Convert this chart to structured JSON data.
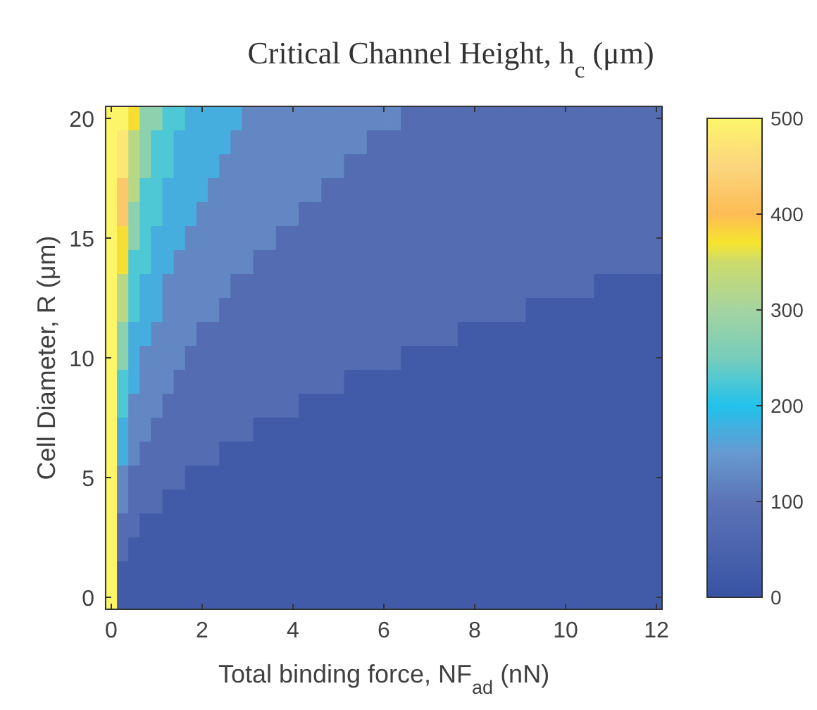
{
  "chart_data": {
    "type": "heatmap",
    "title": "Critical Channel Height, h$_{c}$ (μm)",
    "xlabel": "Total binding force, NF$_{ad}$ (nN)",
    "ylabel": "Cell Diameter, R (μm)",
    "categories": [
      "0",
      null,
      null,
      null,
      null,
      null,
      null,
      null,
      "2",
      null,
      null,
      null,
      null,
      null,
      null,
      null,
      "4",
      null,
      null,
      null,
      null,
      null,
      null,
      null,
      "6",
      null,
      null,
      null,
      null,
      null,
      null,
      null,
      "8",
      null,
      null,
      null,
      null,
      null,
      null,
      null,
      "10",
      null,
      null,
      null,
      null,
      null,
      null,
      null,
      "12"
    ],
    "y_categories": [
      "20",
      null,
      null,
      null,
      null,
      "15",
      null,
      null,
      null,
      null,
      "10",
      null,
      null,
      null,
      null,
      "5",
      null,
      null,
      null,
      null,
      "0"
    ],
    "cells": [
      [
        500,
        500,
        375,
        275,
        275,
        225,
        225,
        175,
        175,
        175,
        175,
        175,
        125,
        125,
        125,
        125,
        125,
        125,
        125,
        125,
        125,
        125,
        125,
        125,
        125,
        125,
        75,
        75,
        75,
        75,
        75,
        75,
        75,
        75,
        75,
        75,
        75,
        75,
        75,
        75,
        75,
        75,
        75,
        75,
        75,
        75,
        75,
        75,
        75
      ],
      [
        500,
        475,
        325,
        275,
        225,
        225,
        175,
        175,
        175,
        175,
        175,
        125,
        125,
        125,
        125,
        125,
        125,
        125,
        125,
        125,
        125,
        125,
        125,
        75,
        75,
        75,
        75,
        75,
        75,
        75,
        75,
        75,
        75,
        75,
        75,
        75,
        75,
        75,
        75,
        75,
        75,
        75,
        75,
        75,
        75,
        75,
        75,
        75,
        75
      ],
      [
        500,
        475,
        325,
        275,
        225,
        225,
        175,
        175,
        175,
        175,
        125,
        125,
        125,
        125,
        125,
        125,
        125,
        125,
        125,
        125,
        125,
        75,
        75,
        75,
        75,
        75,
        75,
        75,
        75,
        75,
        75,
        75,
        75,
        75,
        75,
        75,
        75,
        75,
        75,
        75,
        75,
        75,
        75,
        75,
        75,
        75,
        75,
        75,
        75
      ],
      [
        500,
        425,
        325,
        225,
        225,
        175,
        175,
        175,
        175,
        125,
        125,
        125,
        125,
        125,
        125,
        125,
        125,
        125,
        125,
        75,
        75,
        75,
        75,
        75,
        75,
        75,
        75,
        75,
        75,
        75,
        75,
        75,
        75,
        75,
        75,
        75,
        75,
        75,
        75,
        75,
        75,
        75,
        75,
        75,
        75,
        75,
        75,
        75,
        75
      ],
      [
        500,
        425,
        275,
        225,
        225,
        175,
        175,
        175,
        125,
        125,
        125,
        125,
        125,
        125,
        125,
        125,
        125,
        75,
        75,
        75,
        75,
        75,
        75,
        75,
        75,
        75,
        75,
        75,
        75,
        75,
        75,
        75,
        75,
        75,
        75,
        75,
        75,
        75,
        75,
        75,
        75,
        75,
        75,
        75,
        75,
        75,
        75,
        75,
        75
      ],
      [
        500,
        375,
        275,
        225,
        175,
        175,
        175,
        125,
        125,
        125,
        125,
        125,
        125,
        125,
        125,
        75,
        75,
        75,
        75,
        75,
        75,
        75,
        75,
        75,
        75,
        75,
        75,
        75,
        75,
        75,
        75,
        75,
        75,
        75,
        75,
        75,
        75,
        75,
        75,
        75,
        75,
        75,
        75,
        75,
        75,
        75,
        75,
        75,
        75
      ],
      [
        500,
        375,
        225,
        225,
        175,
        175,
        125,
        125,
        125,
        125,
        125,
        125,
        125,
        75,
        75,
        75,
        75,
        75,
        75,
        75,
        75,
        75,
        75,
        75,
        75,
        75,
        75,
        75,
        75,
        75,
        75,
        75,
        75,
        75,
        75,
        75,
        75,
        75,
        75,
        75,
        75,
        75,
        75,
        75,
        75,
        75,
        75,
        75,
        75
      ],
      [
        500,
        325,
        225,
        175,
        175,
        125,
        125,
        125,
        125,
        125,
        125,
        75,
        75,
        75,
        75,
        75,
        75,
        75,
        75,
        75,
        75,
        75,
        75,
        75,
        75,
        75,
        75,
        75,
        75,
        75,
        75,
        75,
        75,
        75,
        75,
        75,
        75,
        75,
        75,
        75,
        75,
        75,
        75,
        25,
        25,
        25,
        25,
        25,
        25
      ],
      [
        500,
        325,
        225,
        175,
        175,
        125,
        125,
        125,
        125,
        125,
        75,
        75,
        75,
        75,
        75,
        75,
        75,
        75,
        75,
        75,
        75,
        75,
        75,
        75,
        75,
        75,
        75,
        75,
        75,
        75,
        75,
        75,
        75,
        75,
        75,
        75,
        75,
        25,
        25,
        25,
        25,
        25,
        25,
        25,
        25,
        25,
        25,
        25,
        25
      ],
      [
        500,
        275,
        175,
        175,
        125,
        125,
        125,
        125,
        75,
        75,
        75,
        75,
        75,
        75,
        75,
        75,
        75,
        75,
        75,
        75,
        75,
        75,
        75,
        75,
        75,
        75,
        75,
        75,
        75,
        75,
        75,
        25,
        25,
        25,
        25,
        25,
        25,
        25,
        25,
        25,
        25,
        25,
        25,
        25,
        25,
        25,
        25,
        25,
        25
      ],
      [
        500,
        275,
        175,
        125,
        125,
        125,
        125,
        75,
        75,
        75,
        75,
        75,
        75,
        75,
        75,
        75,
        75,
        75,
        75,
        75,
        75,
        75,
        75,
        75,
        75,
        75,
        25,
        25,
        25,
        25,
        25,
        25,
        25,
        25,
        25,
        25,
        25,
        25,
        25,
        25,
        25,
        25,
        25,
        25,
        25,
        25,
        25,
        25,
        25
      ],
      [
        500,
        225,
        175,
        125,
        125,
        125,
        75,
        75,
        75,
        75,
        75,
        75,
        75,
        75,
        75,
        75,
        75,
        75,
        75,
        75,
        75,
        25,
        25,
        25,
        25,
        25,
        25,
        25,
        25,
        25,
        25,
        25,
        25,
        25,
        25,
        25,
        25,
        25,
        25,
        25,
        25,
        25,
        25,
        25,
        25,
        25,
        25,
        25,
        25
      ],
      [
        500,
        225,
        125,
        125,
        125,
        75,
        75,
        75,
        75,
        75,
        75,
        75,
        75,
        75,
        75,
        75,
        75,
        25,
        25,
        25,
        25,
        25,
        25,
        25,
        25,
        25,
        25,
        25,
        25,
        25,
        25,
        25,
        25,
        25,
        25,
        25,
        25,
        25,
        25,
        25,
        25,
        25,
        25,
        25,
        25,
        25,
        25,
        25,
        25
      ],
      [
        500,
        175,
        125,
        125,
        75,
        75,
        75,
        75,
        75,
        75,
        75,
        75,
        75,
        25,
        25,
        25,
        25,
        25,
        25,
        25,
        25,
        25,
        25,
        25,
        25,
        25,
        25,
        25,
        25,
        25,
        25,
        25,
        25,
        25,
        25,
        25,
        25,
        25,
        25,
        25,
        25,
        25,
        25,
        25,
        25,
        25,
        25,
        25,
        25
      ],
      [
        500,
        175,
        125,
        75,
        75,
        75,
        75,
        75,
        75,
        75,
        25,
        25,
        25,
        25,
        25,
        25,
        25,
        25,
        25,
        25,
        25,
        25,
        25,
        25,
        25,
        25,
        25,
        25,
        25,
        25,
        25,
        25,
        25,
        25,
        25,
        25,
        25,
        25,
        25,
        25,
        25,
        25,
        25,
        25,
        25,
        25,
        25,
        25,
        25
      ],
      [
        500,
        125,
        75,
        75,
        75,
        75,
        75,
        25,
        25,
        25,
        25,
        25,
        25,
        25,
        25,
        25,
        25,
        25,
        25,
        25,
        25,
        25,
        25,
        25,
        25,
        25,
        25,
        25,
        25,
        25,
        25,
        25,
        25,
        25,
        25,
        25,
        25,
        25,
        25,
        25,
        25,
        25,
        25,
        25,
        25,
        25,
        25,
        25,
        25
      ],
      [
        500,
        125,
        75,
        75,
        75,
        25,
        25,
        25,
        25,
        25,
        25,
        25,
        25,
        25,
        25,
        25,
        25,
        25,
        25,
        25,
        25,
        25,
        25,
        25,
        25,
        25,
        25,
        25,
        25,
        25,
        25,
        25,
        25,
        25,
        25,
        25,
        25,
        25,
        25,
        25,
        25,
        25,
        25,
        25,
        25,
        25,
        25,
        25,
        25
      ],
      [
        500,
        75,
        75,
        25,
        25,
        25,
        25,
        25,
        25,
        25,
        25,
        25,
        25,
        25,
        25,
        25,
        25,
        25,
        25,
        25,
        25,
        25,
        25,
        25,
        25,
        25,
        25,
        25,
        25,
        25,
        25,
        25,
        25,
        25,
        25,
        25,
        25,
        25,
        25,
        25,
        25,
        25,
        25,
        25,
        25,
        25,
        25,
        25,
        25
      ],
      [
        500,
        75,
        25,
        25,
        25,
        25,
        25,
        25,
        25,
        25,
        25,
        25,
        25,
        25,
        25,
        25,
        25,
        25,
        25,
        25,
        25,
        25,
        25,
        25,
        25,
        25,
        25,
        25,
        25,
        25,
        25,
        25,
        25,
        25,
        25,
        25,
        25,
        25,
        25,
        25,
        25,
        25,
        25,
        25,
        25,
        25,
        25,
        25,
        25
      ],
      [
        500,
        25,
        25,
        25,
        25,
        25,
        25,
        25,
        25,
        25,
        25,
        25,
        25,
        25,
        25,
        25,
        25,
        25,
        25,
        25,
        25,
        25,
        25,
        25,
        25,
        25,
        25,
        25,
        25,
        25,
        25,
        25,
        25,
        25,
        25,
        25,
        25,
        25,
        25,
        25,
        25,
        25,
        25,
        25,
        25,
        25,
        25,
        25,
        25
      ],
      [
        500,
        25,
        25,
        25,
        25,
        25,
        25,
        25,
        25,
        25,
        25,
        25,
        25,
        25,
        25,
        25,
        25,
        25,
        25,
        25,
        25,
        25,
        25,
        25,
        25,
        25,
        25,
        25,
        25,
        25,
        25,
        25,
        25,
        25,
        25,
        25,
        25,
        25,
        25,
        25,
        25,
        25,
        25,
        25,
        25,
        25,
        25,
        25,
        25
      ]
    ],
    "clim": [
      0,
      500
    ],
    "cticks": [
      0,
      100,
      200,
      300,
      400,
      500
    ]
  }
}
